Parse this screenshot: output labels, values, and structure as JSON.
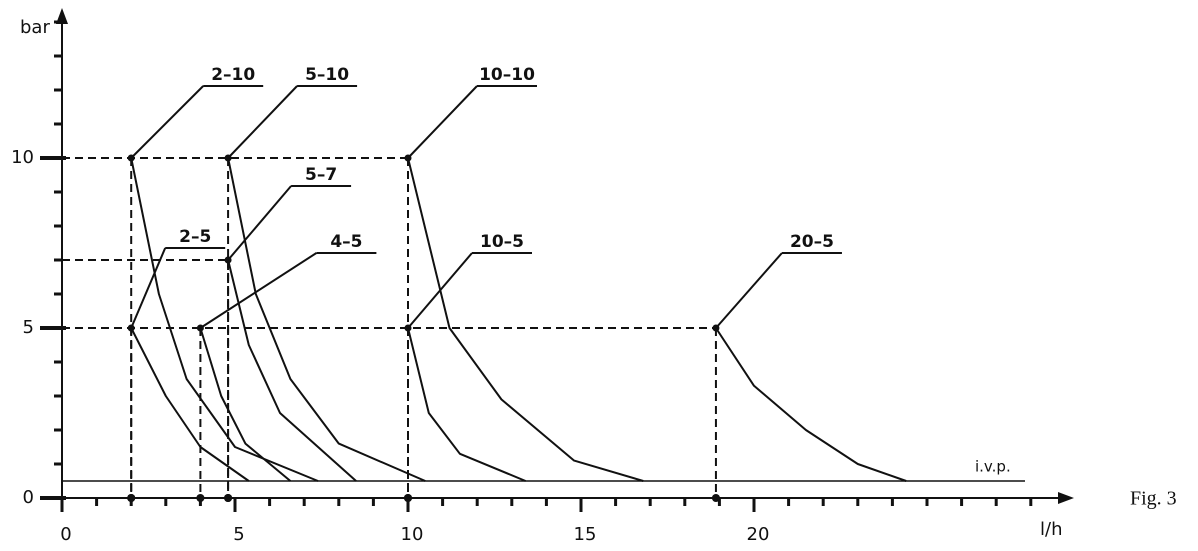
{
  "chart_data": {
    "type": "line",
    "y_label": "bar",
    "x_label": "l/h",
    "figure_label": "Fig. 3",
    "xlim": [
      0,
      29
    ],
    "ylim": [
      0,
      14
    ],
    "xticks": [
      0,
      5,
      10,
      15,
      20
    ],
    "yticks": [
      0,
      5,
      10
    ],
    "x_minor_ticks": [
      1,
      2,
      3,
      4,
      6,
      7,
      8,
      9,
      11,
      12,
      13,
      14,
      16,
      17,
      18,
      19,
      21,
      22,
      23,
      24,
      25,
      26,
      27,
      28
    ],
    "y_minor_ticks": [
      1,
      2,
      3,
      4,
      6,
      7,
      8,
      9,
      11,
      12,
      13,
      14
    ],
    "reference_line": {
      "value": 0.5,
      "label": "i.v.p."
    },
    "color": "#111111",
    "series": [
      {
        "name": "2–10",
        "x": [
          2,
          2.8,
          3.6,
          5,
          7.4
        ],
        "values": [
          10,
          6,
          3.5,
          1.5,
          0.5
        ]
      },
      {
        "name": "5–10",
        "x": [
          4.8,
          5.6,
          6.6,
          8,
          10.5
        ],
        "values": [
          10,
          6,
          3.5,
          1.6,
          0.5
        ]
      },
      {
        "name": "10–10",
        "x": [
          10,
          11.2,
          12.7,
          14.8,
          16.8
        ],
        "values": [
          10,
          5,
          2.9,
          1.1,
          0.5
        ]
      },
      {
        "name": "5–7",
        "x": [
          4.8,
          5.4,
          6.3,
          8.5
        ],
        "values": [
          7,
          4.5,
          2.5,
          0.5
        ]
      },
      {
        "name": "2–5",
        "x": [
          2,
          3,
          4,
          5.4
        ],
        "values": [
          5,
          3,
          1.5,
          0.5
        ]
      },
      {
        "name": "4–5",
        "x": [
          4,
          4.6,
          5.3,
          6.6
        ],
        "values": [
          5,
          3,
          1.6,
          0.5
        ]
      },
      {
        "name": "10–5",
        "x": [
          10,
          10.6,
          11.5,
          13.4
        ],
        "values": [
          5,
          2.5,
          1.3,
          0.5
        ]
      },
      {
        "name": "20–5",
        "x": [
          18.9,
          20,
          21.5,
          23,
          24.4
        ],
        "values": [
          5,
          3.3,
          2,
          1,
          0.5
        ]
      }
    ]
  }
}
